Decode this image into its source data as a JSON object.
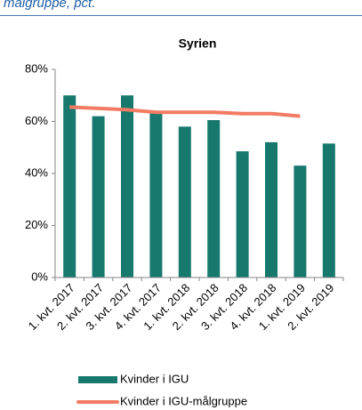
{
  "caption": "målgruppe, pct.",
  "chart_data": {
    "type": "combo",
    "title": "Syrien",
    "categories": [
      "1. kvt. 2017",
      "2. kvt. 2017",
      "3. kvt. 2017",
      "4. kvt. 2017",
      "1. kvt. 2018",
      "2. kvt. 2018",
      "3. kvt. 2018",
      "4. kvt. 2018",
      "1. kvt. 2019",
      "2. kvt. 2019"
    ],
    "series": [
      {
        "name": "Kvinder i IGU",
        "type": "bar",
        "color": "#17786e",
        "values": [
          70,
          62,
          70,
          63,
          58,
          60.5,
          48.5,
          52,
          43,
          51.5
        ]
      },
      {
        "name": "Kvinder i IGU-målgruppe",
        "type": "line",
        "color": "#f27b63",
        "values": [
          65.5,
          65,
          64.5,
          63.5,
          63.5,
          63.5,
          63,
          63,
          62,
          null
        ]
      }
    ],
    "ylim": [
      0,
      80
    ],
    "yticks": [
      {
        "value": 0,
        "label": "0%"
      },
      {
        "value": 20,
        "label": "20%"
      },
      {
        "value": 40,
        "label": "40%"
      },
      {
        "value": 60,
        "label": "60%"
      },
      {
        "value": 80,
        "label": "80%"
      }
    ],
    "grid": false,
    "legend": "bottom"
  }
}
